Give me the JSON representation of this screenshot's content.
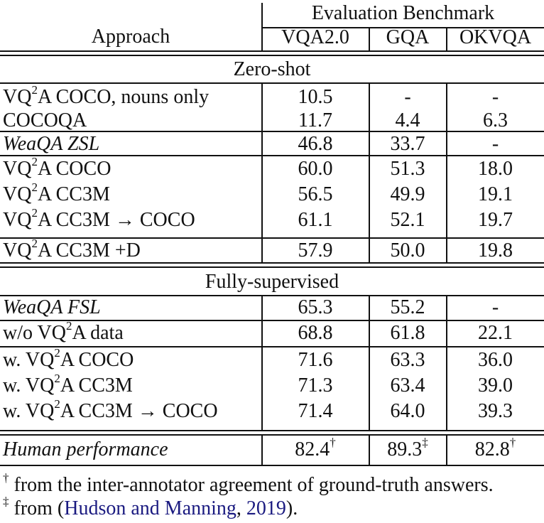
{
  "table": {
    "header": {
      "approach": "Approach",
      "group": "Evaluation Benchmark",
      "columns": [
        "VQA2.0",
        "GQA",
        "OKVQA"
      ]
    },
    "sections": [
      {
        "title": "Zero-shot",
        "rows": [
          {
            "pre": "VQ",
            "sup": "2",
            "post": "A COCO, nouns only",
            "italic": false,
            "vqa": "10.5",
            "gqa": "-",
            "okvqa": "-"
          },
          {
            "pre": "COCOQA",
            "sup": "",
            "post": "",
            "italic": false,
            "vqa": "11.7",
            "gqa": "4.4",
            "okvqa": "6.3"
          },
          {
            "pre": "WeaQA ZSL",
            "sup": "",
            "post": "",
            "italic": true,
            "vqa": "46.8",
            "gqa": "33.7",
            "okvqa": "-"
          },
          {
            "pre": "VQ",
            "sup": "2",
            "post": "A COCO",
            "italic": false,
            "vqa": "60.0",
            "gqa": "51.3",
            "okvqa": "18.0"
          },
          {
            "pre": "VQ",
            "sup": "2",
            "post": "A CC3M",
            "italic": false,
            "vqa": "56.5",
            "gqa": "49.9",
            "okvqa": "19.1"
          },
          {
            "pre": "VQ",
            "sup": "2",
            "post": "A CC3M → COCO",
            "italic": false,
            "vqa": "61.1",
            "gqa": "52.1",
            "okvqa": "19.7"
          },
          {
            "pre": "VQ",
            "sup": "2",
            "post": "A CC3M +D",
            "italic": false,
            "vqa": "57.9",
            "gqa": "50.0",
            "okvqa": "19.8"
          }
        ]
      },
      {
        "title": "Fully-supervised",
        "rows": [
          {
            "pre": "WeaQA FSL",
            "sup": "",
            "post": "",
            "italic": true,
            "vqa": "65.3",
            "gqa": "55.2",
            "okvqa": "-"
          },
          {
            "pre": "w/o VQ",
            "sup": "2",
            "post": "A data",
            "italic": false,
            "vqa": "68.8",
            "gqa": "61.8",
            "okvqa": "22.1"
          },
          {
            "pre": "w. VQ",
            "sup": "2",
            "post": "A COCO",
            "italic": false,
            "vqa": "71.6",
            "gqa": "63.3",
            "okvqa": "36.0"
          },
          {
            "pre": "w. VQ",
            "sup": "2",
            "post": "A CC3M",
            "italic": false,
            "vqa": "71.3",
            "gqa": "63.4",
            "okvqa": "39.0"
          },
          {
            "pre": "w. VQ",
            "sup": "2",
            "post": "A CC3M → COCO",
            "italic": false,
            "vqa": "71.4",
            "gqa": "64.0",
            "okvqa": "39.3"
          }
        ]
      }
    ],
    "human": {
      "label": "Human performance",
      "vqa": "82.4",
      "vqa_mark": "†",
      "gqa": "89.3",
      "gqa_mark": "‡",
      "okvqa": "82.8",
      "okvqa_mark": "†"
    }
  },
  "footnotes": [
    {
      "mark": "†",
      "text": "from the inter-annotator agreement of ground-truth answers."
    },
    {
      "mark": "‡",
      "text_pre": "from (",
      "link": "Hudson and Manning",
      "text_mid": ", ",
      "year": "2019",
      "text_post": ")."
    }
  ],
  "colors": {
    "link": "#1a1a80",
    "rule": "#111111"
  }
}
